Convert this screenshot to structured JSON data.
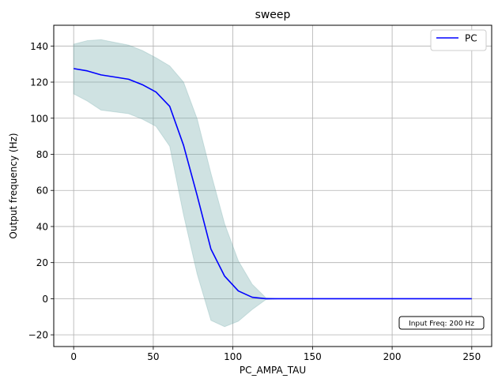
{
  "chart_data": {
    "type": "line",
    "title": "sweep",
    "xlabel": "PC_AMPA_TAU",
    "ylabel": "Output frequency (Hz)",
    "xlim": [
      -12.5,
      262.5
    ],
    "ylim": [
      -26.5,
      151.5
    ],
    "xticks": [
      0,
      50,
      100,
      150,
      200,
      250
    ],
    "yticks": [
      -20,
      0,
      20,
      40,
      60,
      80,
      100,
      120,
      140
    ],
    "grid": true,
    "legend_position": "top-right",
    "series": [
      {
        "name": "PC",
        "color": "#0000ff",
        "x": [
          0,
          8.6,
          17.2,
          25.9,
          34.5,
          43.1,
          51.7,
          60.3,
          69.0,
          77.6,
          86.2,
          94.8,
          103.4,
          112.1,
          120.7,
          129.3,
          137.9,
          146.6,
          155.2,
          163.8,
          172.4,
          181.0,
          189.7,
          198.3,
          206.9,
          215.5,
          224.1,
          232.8,
          241.4,
          250.0
        ],
        "y": [
          127.5,
          126.2,
          124.0,
          122.8,
          121.6,
          118.6,
          114.5,
          106.6,
          85.0,
          57.0,
          27.5,
          12.5,
          4.3,
          0.8,
          0,
          0,
          0,
          0,
          0,
          0,
          0,
          0,
          0,
          0,
          0,
          0,
          0,
          0,
          0,
          0
        ],
        "band_upper": [
          141.0,
          143.0,
          143.5,
          142.0,
          140.5,
          137.5,
          133.5,
          129.0,
          120.0,
          99.5,
          69.5,
          41.5,
          21.0,
          8.0,
          0.5,
          0,
          0,
          0,
          0,
          0,
          0,
          0,
          0,
          0,
          0,
          0,
          0,
          0,
          0,
          0
        ],
        "band_lower": [
          113.5,
          109.5,
          104.5,
          103.5,
          102.5,
          99.5,
          95.5,
          84.5,
          46.5,
          13.5,
          -12.0,
          -15.5,
          -12.5,
          -6.0,
          -0.5,
          0,
          0,
          0,
          0,
          0,
          0,
          0,
          0,
          0,
          0,
          0,
          0,
          0,
          0,
          0
        ],
        "band_color": "#5f9ea0"
      }
    ],
    "annotation": "Input Freq: 200 Hz"
  }
}
